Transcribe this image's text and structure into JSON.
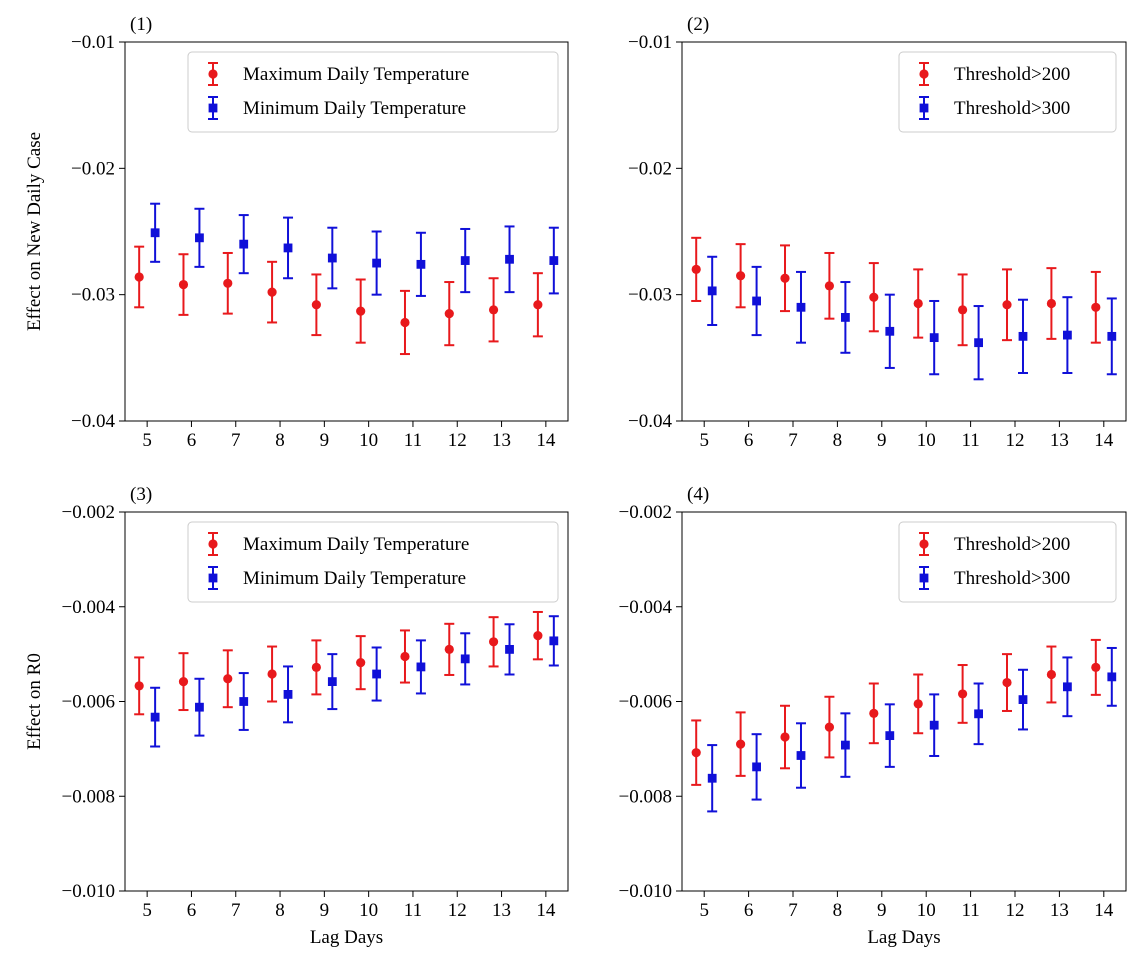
{
  "colors": {
    "series_a": "#e8191c",
    "series_b": "#1010d8"
  },
  "chart_data": [
    {
      "type": "scatter",
      "panel_label": "(1)",
      "xlabel": "",
      "ylabel": "Effect on New Daily Case",
      "ylim": [
        -0.04,
        -0.01
      ],
      "yticks": [
        -0.04,
        -0.03,
        -0.02,
        -0.01
      ],
      "ytick_labels": [
        "−0.04",
        "−0.03",
        "−0.02",
        "−0.01"
      ],
      "xticks": [
        5,
        6,
        7,
        8,
        9,
        10,
        11,
        12,
        13,
        14
      ],
      "xtick_labels": [
        "5",
        "6",
        "7",
        "8",
        "9",
        "10",
        "11",
        "12",
        "13",
        "14"
      ],
      "legend_position": "upper-right",
      "series": [
        {
          "name": "Maximum Daily Temperature",
          "marker": "circle",
          "color": "#e8191c",
          "x": [
            5,
            6,
            7,
            8,
            9,
            10,
            11,
            12,
            13,
            14
          ],
          "y": [
            -0.0286,
            -0.0292,
            -0.0291,
            -0.0298,
            -0.0308,
            -0.0313,
            -0.0322,
            -0.0315,
            -0.0312,
            -0.0308
          ],
          "err": [
            0.0024,
            0.0024,
            0.0024,
            0.0024,
            0.0024,
            0.0025,
            0.0025,
            0.0025,
            0.0025,
            0.0025
          ]
        },
        {
          "name": "Minimum Daily Temperature",
          "marker": "square",
          "color": "#1010d8",
          "x": [
            5,
            6,
            7,
            8,
            9,
            10,
            11,
            12,
            13,
            14
          ],
          "y": [
            -0.0251,
            -0.0255,
            -0.026,
            -0.0263,
            -0.0271,
            -0.0275,
            -0.0276,
            -0.0273,
            -0.0272,
            -0.0273
          ],
          "err": [
            0.0023,
            0.0023,
            0.0023,
            0.0024,
            0.0024,
            0.0025,
            0.0025,
            0.0025,
            0.0026,
            0.0026
          ]
        }
      ]
    },
    {
      "type": "scatter",
      "panel_label": "(2)",
      "xlabel": "",
      "ylabel": "",
      "ylim": [
        -0.04,
        -0.01
      ],
      "yticks": [
        -0.04,
        -0.03,
        -0.02,
        -0.01
      ],
      "ytick_labels": [
        "−0.04",
        "−0.03",
        "−0.02",
        "−0.01"
      ],
      "xticks": [
        5,
        6,
        7,
        8,
        9,
        10,
        11,
        12,
        13,
        14
      ],
      "xtick_labels": [
        "5",
        "6",
        "7",
        "8",
        "9",
        "10",
        "11",
        "12",
        "13",
        "14"
      ],
      "legend_position": "upper-right",
      "series": [
        {
          "name": "Threshold>200",
          "marker": "circle",
          "color": "#e8191c",
          "x": [
            5,
            6,
            7,
            8,
            9,
            10,
            11,
            12,
            13,
            14
          ],
          "y": [
            -0.028,
            -0.0285,
            -0.0287,
            -0.0293,
            -0.0302,
            -0.0307,
            -0.0312,
            -0.0308,
            -0.0307,
            -0.031
          ],
          "err": [
            0.0025,
            0.0025,
            0.0026,
            0.0026,
            0.0027,
            0.0027,
            0.0028,
            0.0028,
            0.0028,
            0.0028
          ]
        },
        {
          "name": "Threshold>300",
          "marker": "square",
          "color": "#1010d8",
          "x": [
            5,
            6,
            7,
            8,
            9,
            10,
            11,
            12,
            13,
            14
          ],
          "y": [
            -0.0297,
            -0.0305,
            -0.031,
            -0.0318,
            -0.0329,
            -0.0334,
            -0.0338,
            -0.0333,
            -0.0332,
            -0.0333
          ],
          "err": [
            0.0027,
            0.0027,
            0.0028,
            0.0028,
            0.0029,
            0.0029,
            0.0029,
            0.0029,
            0.003,
            0.003
          ]
        }
      ]
    },
    {
      "type": "scatter",
      "panel_label": "(3)",
      "xlabel": "Lag Days",
      "ylabel": "Effect on R0",
      "ylim": [
        -0.01,
        -0.002
      ],
      "yticks": [
        -0.01,
        -0.008,
        -0.006,
        -0.004,
        -0.002
      ],
      "ytick_labels": [
        "−0.010",
        "−0.008",
        "−0.006",
        "−0.004",
        "−0.002"
      ],
      "xticks": [
        5,
        6,
        7,
        8,
        9,
        10,
        11,
        12,
        13,
        14
      ],
      "xtick_labels": [
        "5",
        "6",
        "7",
        "8",
        "9",
        "10",
        "11",
        "12",
        "13",
        "14"
      ],
      "legend_position": "upper-right",
      "series": [
        {
          "name": "Maximum Daily Temperature",
          "marker": "circle",
          "color": "#e8191c",
          "x": [
            5,
            6,
            7,
            8,
            9,
            10,
            11,
            12,
            13,
            14
          ],
          "y": [
            -0.00567,
            -0.00558,
            -0.00552,
            -0.00542,
            -0.00528,
            -0.00518,
            -0.00505,
            -0.0049,
            -0.00474,
            -0.00461
          ],
          "err": [
            0.0006,
            0.0006,
            0.0006,
            0.00058,
            0.00057,
            0.00056,
            0.00055,
            0.00054,
            0.00052,
            0.0005
          ]
        },
        {
          "name": "Minimum Daily Temperature",
          "marker": "square",
          "color": "#1010d8",
          "x": [
            5,
            6,
            7,
            8,
            9,
            10,
            11,
            12,
            13,
            14
          ],
          "y": [
            -0.00633,
            -0.00612,
            -0.006,
            -0.00585,
            -0.00558,
            -0.00542,
            -0.00527,
            -0.0051,
            -0.0049,
            -0.00472
          ],
          "err": [
            0.00062,
            0.0006,
            0.0006,
            0.00059,
            0.00058,
            0.00056,
            0.00056,
            0.00054,
            0.00053,
            0.00052
          ]
        }
      ]
    },
    {
      "type": "scatter",
      "panel_label": "(4)",
      "xlabel": "Lag Days",
      "ylabel": "",
      "ylim": [
        -0.01,
        -0.002
      ],
      "yticks": [
        -0.01,
        -0.008,
        -0.006,
        -0.004,
        -0.002
      ],
      "ytick_labels": [
        "−0.010",
        "−0.008",
        "−0.006",
        "−0.004",
        "−0.002"
      ],
      "xticks": [
        5,
        6,
        7,
        8,
        9,
        10,
        11,
        12,
        13,
        14
      ],
      "xtick_labels": [
        "5",
        "6",
        "7",
        "8",
        "9",
        "10",
        "11",
        "12",
        "13",
        "14"
      ],
      "legend_position": "upper-right",
      "series": [
        {
          "name": "Threshold>200",
          "marker": "circle",
          "color": "#e8191c",
          "x": [
            5,
            6,
            7,
            8,
            9,
            10,
            11,
            12,
            13,
            14
          ],
          "y": [
            -0.00708,
            -0.0069,
            -0.00675,
            -0.00654,
            -0.00625,
            -0.00605,
            -0.00584,
            -0.0056,
            -0.00543,
            -0.00528
          ],
          "err": [
            0.00068,
            0.00067,
            0.00066,
            0.00064,
            0.00063,
            0.00062,
            0.00061,
            0.0006,
            0.00059,
            0.00058
          ]
        },
        {
          "name": "Threshold>300",
          "marker": "square",
          "color": "#1010d8",
          "x": [
            5,
            6,
            7,
            8,
            9,
            10,
            11,
            12,
            13,
            14
          ],
          "y": [
            -0.00762,
            -0.00738,
            -0.00714,
            -0.00692,
            -0.00672,
            -0.0065,
            -0.00626,
            -0.00596,
            -0.00569,
            -0.00548
          ],
          "err": [
            0.0007,
            0.00069,
            0.00068,
            0.00067,
            0.00066,
            0.00065,
            0.00064,
            0.00063,
            0.00062,
            0.00061
          ]
        }
      ]
    }
  ]
}
